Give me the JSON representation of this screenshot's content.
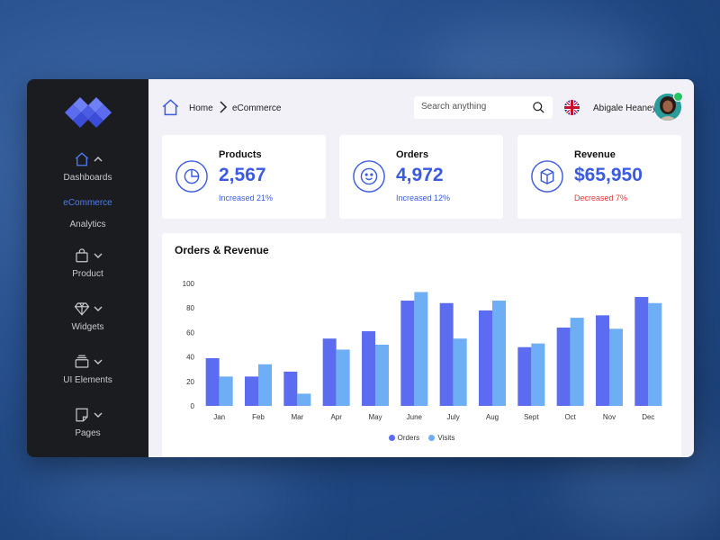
{
  "sidebar": {
    "nav": [
      {
        "label": "Dashboards",
        "icon": "home-icon"
      },
      {
        "label": "Product",
        "icon": "shopping-bag-icon"
      },
      {
        "label": "Widgets",
        "icon": "diamond-icon"
      },
      {
        "label": "UI Elements",
        "icon": "layers-icon"
      },
      {
        "label": "Pages",
        "icon": "pages-icon"
      }
    ],
    "sub_items": [
      {
        "label": "eCommerce",
        "active": true
      },
      {
        "label": "Analytics",
        "active": false
      }
    ]
  },
  "breadcrumb": {
    "home": "Home",
    "current": "eCommerce"
  },
  "search": {
    "placeholder": "Search anything"
  },
  "user": {
    "name": "Abigale Heaney",
    "status": "online"
  },
  "stats": [
    {
      "title": "Products",
      "value": "2,567",
      "change": "Increased 21%",
      "trend": "up",
      "icon": "pie-chart-icon"
    },
    {
      "title": "Orders",
      "value": "4,972",
      "change": "Increased 12%",
      "trend": "up",
      "icon": "smiley-icon"
    },
    {
      "title": "Revenue",
      "value": "$65,950",
      "change": "Decreased 7%",
      "trend": "down",
      "icon": "box-icon"
    }
  ],
  "colors": {
    "accent": "#3a5ae0",
    "negative": "#e23a3a",
    "orders": "#5b6cf0",
    "visits": "#6daef5",
    "online": "#22c55e"
  },
  "chart_data": {
    "type": "bar",
    "title": "Orders & Revenue",
    "categories": [
      "Jan",
      "Feb",
      "Mar",
      "Apr",
      "May",
      "June",
      "July",
      "Aug",
      "Sept",
      "Oct",
      "Nov",
      "Dec"
    ],
    "series": [
      {
        "name": "Orders",
        "values": [
          39,
          24,
          28,
          55,
          61,
          86,
          84,
          78,
          48,
          64,
          74,
          89
        ]
      },
      {
        "name": "Visits",
        "values": [
          24,
          34,
          10,
          46,
          50,
          93,
          55,
          86,
          51,
          72,
          63,
          84
        ]
      }
    ],
    "ylim": [
      0,
      100
    ],
    "yticks": [
      0,
      20,
      40,
      60,
      80,
      100
    ],
    "legend": "bottom",
    "grid": false
  }
}
